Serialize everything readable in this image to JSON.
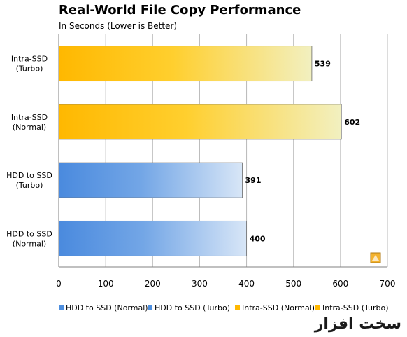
{
  "title": "Real-World File Copy Performance",
  "subtitle": "In Seconds (Lower is Better)",
  "watermark": "سخت افزار",
  "chart_data": {
    "type": "bar",
    "orientation": "horizontal",
    "title": "Real-World File Copy Performance",
    "subtitle": "In Seconds (Lower is Better)",
    "xlabel": "",
    "ylabel": "",
    "xlim": [
      0,
      700
    ],
    "x_ticks": [
      0,
      100,
      200,
      300,
      400,
      500,
      600,
      700
    ],
    "grid": true,
    "legend_position": "bottom",
    "categories": [
      [
        "Intra-SSD",
        "(Turbo)"
      ],
      [
        "Intra-SSD",
        "(Normal)"
      ],
      [
        "HDD to SSD",
        "(Turbo)"
      ],
      [
        "HDD to SSD",
        "(Normal)"
      ]
    ],
    "values": [
      539,
      602,
      391,
      400
    ],
    "bar_colors": [
      "#ffb800",
      "#ffb800",
      "#4e8fdf",
      "#4e8fdf"
    ],
    "legend": [
      {
        "name": "HDD to SSD (Normal)",
        "color": "#4e8fdf"
      },
      {
        "name": "HDD to SSD (Turbo)",
        "color": "#4e8fdf"
      },
      {
        "name": "Intra-SSD (Normal)",
        "color": "#ffb800"
      },
      {
        "name": "Intra-SSD (Turbo)",
        "color": "#ffb800"
      }
    ]
  }
}
